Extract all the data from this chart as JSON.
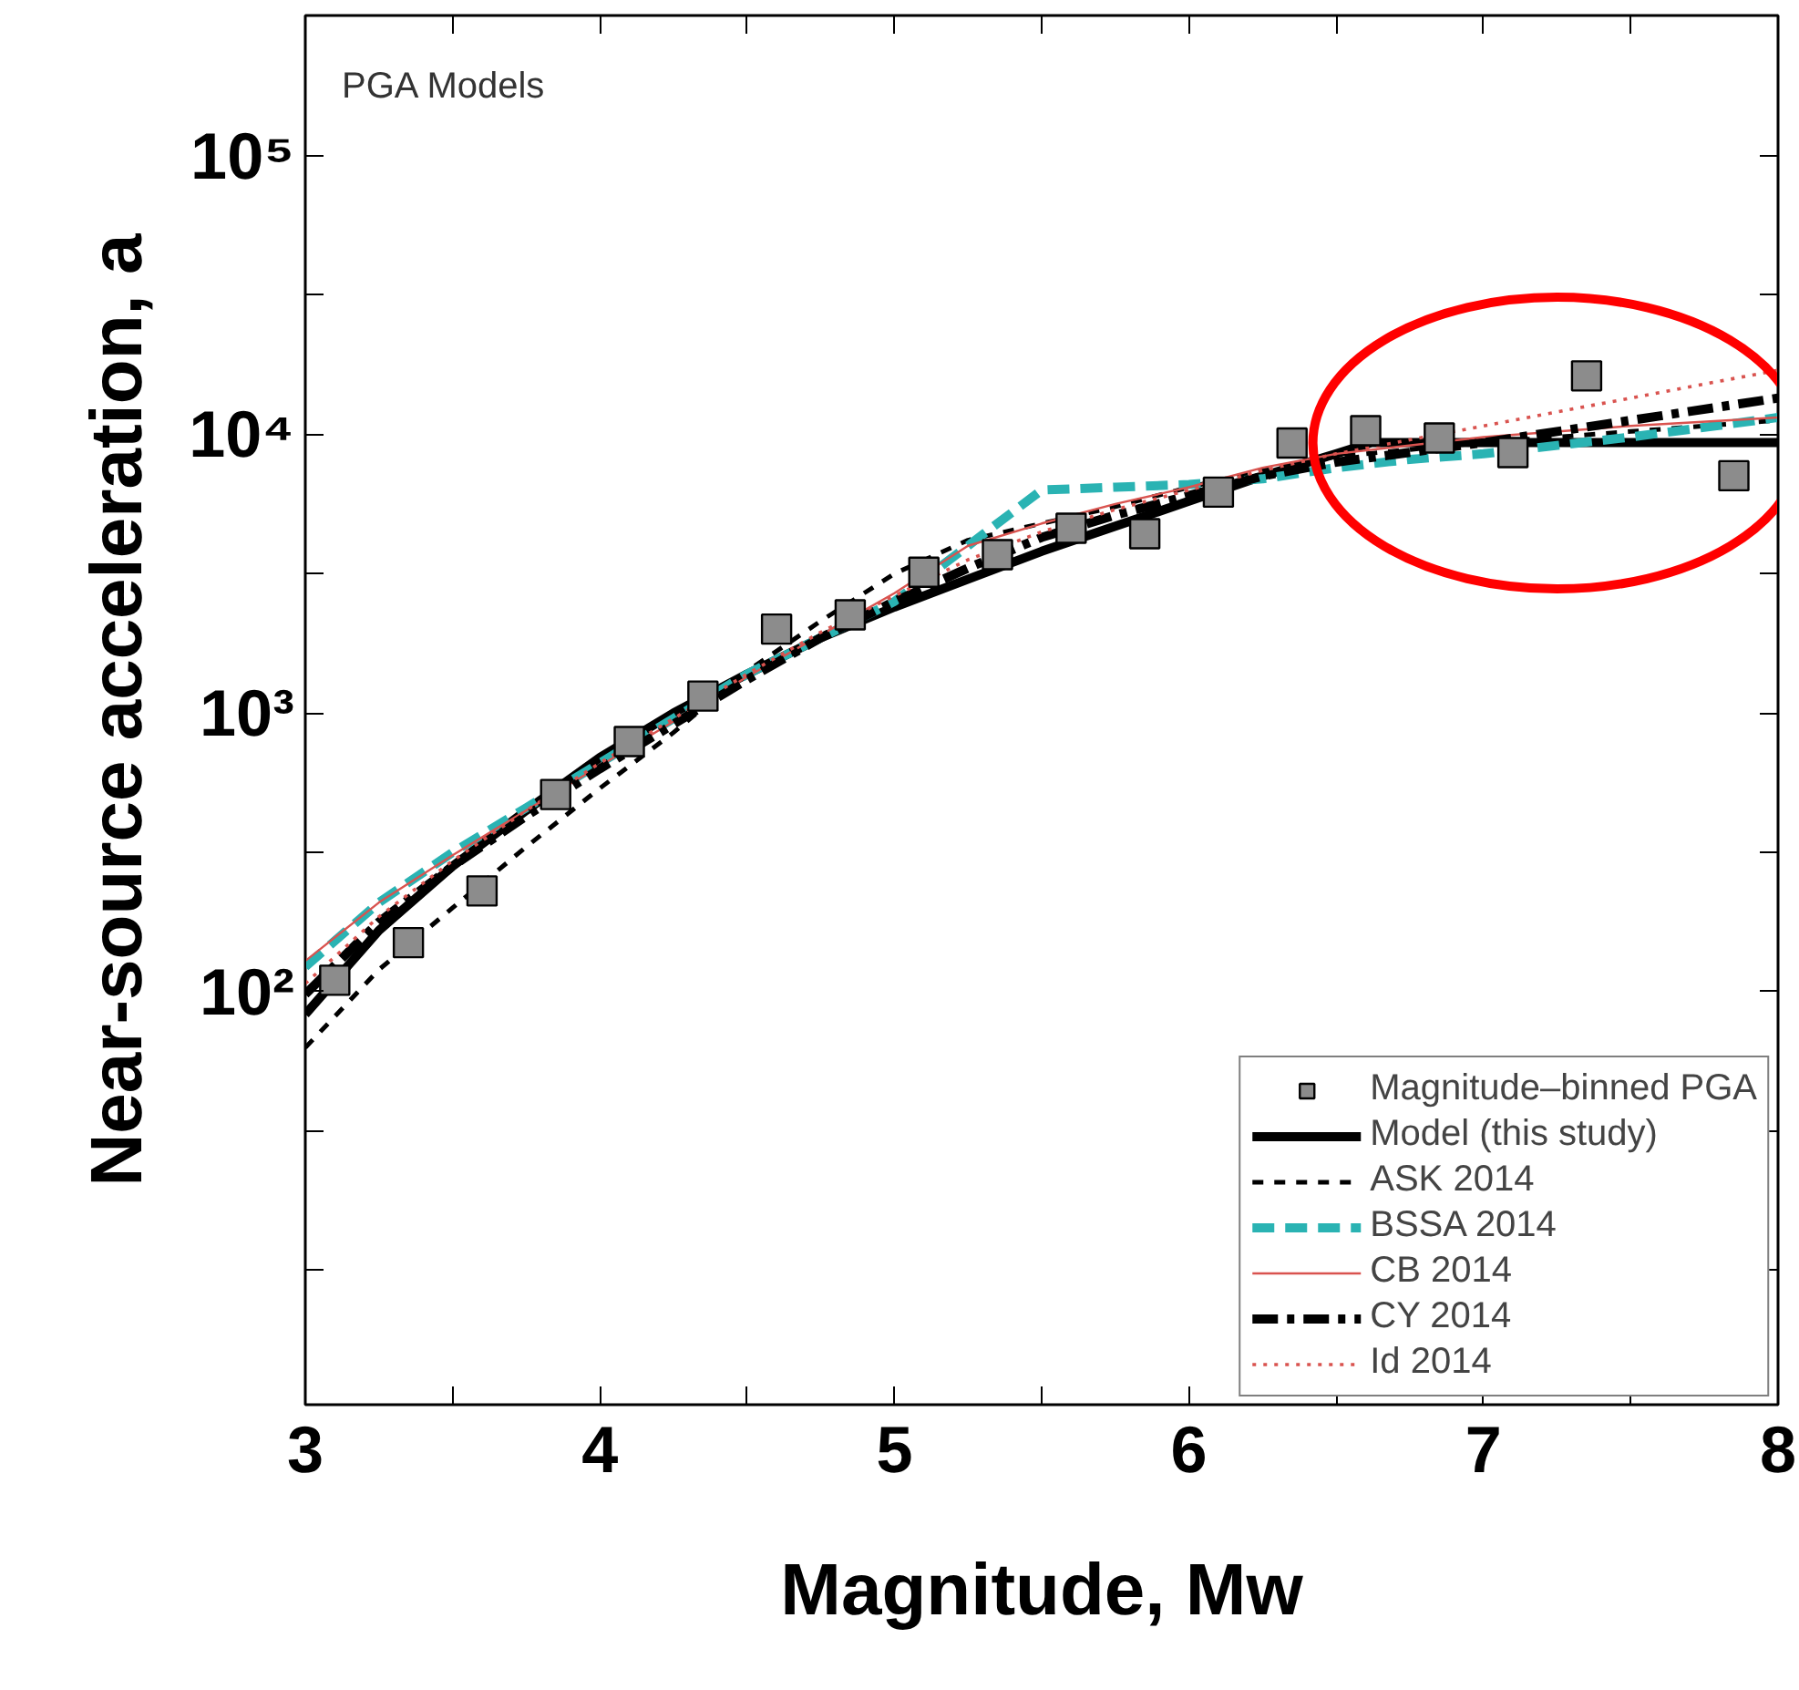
{
  "chart_data": {
    "type": "line",
    "title": "PGA Models",
    "xlabel": "Magnitude, Mw",
    "ylabel": "Near-source acceleration, a",
    "log": "y",
    "grid": false,
    "legend": "bottom right",
    "xlim": [
      3,
      8
    ],
    "xticks": [
      3,
      {
        "value": 3.5,
        "label": null
      },
      4,
      {
        "value": 4.5,
        "label": null
      },
      5,
      {
        "value": 5.5,
        "label": null
      },
      6,
      {
        "value": 6.5,
        "label": null
      },
      7,
      {
        "value": 7.5,
        "label": null
      },
      8
    ],
    "ylim": [
      3.3,
      318000
    ],
    "yticks": [
      {
        "value": 10,
        "label": null
      },
      {
        "value": 31.62,
        "label": null
      },
      {
        "value": 100,
        "label": "10²"
      },
      {
        "value": 316.2,
        "label": null
      },
      {
        "value": 1000,
        "label": "10³"
      },
      {
        "value": 3162,
        "label": null
      },
      {
        "value": 10000,
        "label": "10⁴"
      },
      {
        "value": 31620,
        "label": null
      },
      {
        "value": 100000,
        "label": "10⁵"
      }
    ],
    "series": [
      {
        "name": "Magnitude–binned PGA",
        "type": "scatter",
        "marker": "square",
        "color": "#8c8c8c",
        "x": [
          3.1,
          3.35,
          3.6,
          3.85,
          4.1,
          4.35,
          4.6,
          4.85,
          5.1,
          5.35,
          5.6,
          5.85,
          6.1,
          6.35,
          6.6,
          6.85,
          7.1,
          7.35,
          7.85
        ],
        "values": [
          110,
          150,
          230,
          510,
          790,
          1150,
          2000,
          2250,
          3200,
          3700,
          4600,
          4400,
          6200,
          9300,
          10300,
          9700,
          8600,
          16200,
          7100
        ]
      },
      {
        "name": "Model (this study)",
        "line_style": "solid",
        "color": "#000000",
        "x": [
          3,
          3.25,
          3.5,
          3.75,
          4,
          4.25,
          4.5,
          4.75,
          5,
          5.25,
          5.5,
          5.75,
          6,
          6.25,
          6.5,
          6.62,
          8
        ],
        "values": [
          83,
          166,
          282,
          447,
          692,
          1000,
          1380,
          1862,
          2399,
          3020,
          3802,
          4677,
          5754,
          7079,
          8511,
          9333,
          9333
        ]
      },
      {
        "name": "ASK 2014",
        "line_style": "dashed",
        "color": "#000000",
        "x": [
          3,
          3.25,
          3.5,
          3.75,
          4,
          4.25,
          4.5,
          4.75,
          5,
          5.25,
          5.5,
          5.75,
          6,
          6.25,
          6.5,
          7,
          7.5,
          8
        ],
        "values": [
          63,
          120,
          200,
          331,
          537,
          851,
          1413,
          2138,
          3162,
          4169,
          4786,
          5495,
          6457,
          7413,
          8318,
          9333,
          10233,
          11220
        ]
      },
      {
        "name": "BSSA 2014",
        "line_style": "dashed",
        "color": "#2ab3b3",
        "x": [
          3,
          3.25,
          3.5,
          3.75,
          4,
          4.25,
          4.5,
          4.75,
          5,
          5.25,
          5.5,
          5.75,
          6,
          6.25,
          6.5,
          6.75,
          7,
          7.5,
          8
        ],
        "values": [
          123,
          209,
          316,
          457,
          661,
          955,
          1380,
          1862,
          2512,
          3981,
          6310,
          6457,
          6607,
          6918,
          7586,
          8128,
          8511,
          9772,
          11482
        ]
      },
      {
        "name": "CB 2014",
        "line_style": "solid",
        "color": "#d9534f",
        "x": [
          3,
          3.25,
          3.5,
          3.75,
          4,
          4.25,
          4.5,
          4.75,
          5,
          5.25,
          5.5,
          5.75,
          6,
          6.25,
          6.5,
          7,
          7.5,
          8
        ],
        "values": [
          129,
          209,
          309,
          447,
          646,
          933,
          1349,
          1905,
          2692,
          3981,
          4786,
          5623,
          6457,
          7586,
          8511,
          9772,
          10715,
          11482
        ]
      },
      {
        "name": "CY 2014",
        "line_style": "dashdot",
        "color": "#000000",
        "x": [
          3,
          3.25,
          3.5,
          3.75,
          4,
          4.25,
          4.5,
          4.75,
          5,
          5.25,
          5.5,
          5.75,
          6,
          6.25,
          6.5,
          7,
          7.5,
          8
        ],
        "values": [
          98,
          178,
          282,
          427,
          631,
          912,
          1318,
          1862,
          2512,
          3311,
          4266,
          5129,
          6026,
          7079,
          7943,
          9333,
          11220,
          13490
        ]
      },
      {
        "name": "Id 2014",
        "line_style": "dotted",
        "color": "#d9534f",
        "x": [
          3,
          3.25,
          3.5,
          3.75,
          4,
          4.25,
          4.5,
          4.75,
          5,
          5.25,
          5.5,
          5.75,
          6,
          6.25,
          6.5,
          7,
          7.5,
          8
        ],
        "values": [
          107,
          186,
          295,
          447,
          661,
          955,
          1380,
          1950,
          2630,
          3548,
          4467,
          5370,
          6310,
          7413,
          8511,
          10715,
          13490,
          16982
        ]
      }
    ]
  }
}
